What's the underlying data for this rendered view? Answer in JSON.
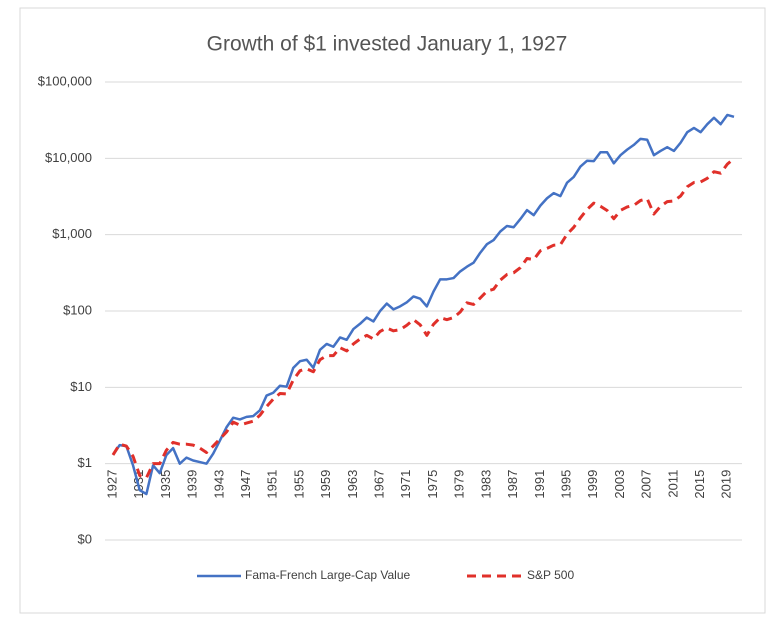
{
  "chart_data": {
    "type": "line",
    "title": "Growth of $1 invested January 1, 1927",
    "x": [
      1927,
      1928,
      1929,
      1930,
      1931,
      1932,
      1933,
      1934,
      1935,
      1936,
      1937,
      1938,
      1939,
      1940,
      1941,
      1942,
      1943,
      1944,
      1945,
      1946,
      1947,
      1948,
      1949,
      1950,
      1951,
      1952,
      1953,
      1954,
      1955,
      1956,
      1957,
      1958,
      1959,
      1960,
      1961,
      1962,
      1963,
      1964,
      1965,
      1966,
      1967,
      1968,
      1969,
      1970,
      1971,
      1972,
      1973,
      1974,
      1975,
      1976,
      1977,
      1978,
      1979,
      1980,
      1981,
      1982,
      1983,
      1984,
      1985,
      1986,
      1987,
      1988,
      1989,
      1990,
      1991,
      1992,
      1993,
      1994,
      1995,
      1996,
      1997,
      1998,
      1999,
      2000,
      2001,
      2002,
      2003,
      2004,
      2005,
      2006,
      2007,
      2008,
      2009,
      2010,
      2011,
      2012,
      2013,
      2014,
      2015,
      2016,
      2017,
      2018,
      2019,
      2020
    ],
    "xlim": [
      1927,
      2020
    ],
    "xticks": [
      1927,
      1931,
      1935,
      1939,
      1943,
      1947,
      1951,
      1955,
      1959,
      1963,
      1967,
      1971,
      1975,
      1979,
      1983,
      1987,
      1991,
      1995,
      1999,
      2003,
      2007,
      2011,
      2015,
      2019
    ],
    "ylim": [
      0.1,
      100000
    ],
    "log_scale": true,
    "grid": true,
    "yticks": [
      {
        "value": 0.1,
        "label": "$0"
      },
      {
        "value": 1,
        "label": "$1"
      },
      {
        "value": 10,
        "label": "$10"
      },
      {
        "value": 100,
        "label": "$100"
      },
      {
        "value": 1000,
        "label": "$1,000"
      },
      {
        "value": 10000,
        "label": "$10,000"
      },
      {
        "value": 100000,
        "label": "$100,000"
      }
    ],
    "series": [
      {
        "name": "Fama-French Large-Cap Value",
        "color": "#4472c4",
        "dash": false,
        "values": [
          1.3,
          1.75,
          1.7,
          0.95,
          0.45,
          0.4,
          0.95,
          0.75,
          1.3,
          1.6,
          1.0,
          1.2,
          1.1,
          1.05,
          1.0,
          1.35,
          2.0,
          3.0,
          4.0,
          3.8,
          4.1,
          4.2,
          5.0,
          7.8,
          8.5,
          10.5,
          10.2,
          18,
          22,
          23,
          18,
          31,
          37,
          34,
          45,
          42,
          58,
          68,
          82,
          73,
          100,
          125,
          105,
          115,
          130,
          155,
          145,
          115,
          180,
          260,
          260,
          270,
          330,
          380,
          430,
          580,
          750,
          850,
          1100,
          1300,
          1250,
          1600,
          2100,
          1800,
          2400,
          3000,
          3500,
          3200,
          4800,
          5700,
          7800,
          9300,
          9200,
          12000,
          12000,
          8600,
          11000,
          13000,
          15000,
          18000,
          17500,
          11000,
          12500,
          14000,
          12500,
          16000,
          22000,
          25000,
          22000,
          28000,
          34000,
          28000,
          37000,
          35000
        ]
      },
      {
        "name": "S&P 500",
        "color": "#e0302a",
        "dash": true,
        "values": [
          1.3,
          1.8,
          1.7,
          1.25,
          0.7,
          0.65,
          1.0,
          1.0,
          1.5,
          1.9,
          1.8,
          1.8,
          1.75,
          1.6,
          1.4,
          1.7,
          2.1,
          2.6,
          3.5,
          3.2,
          3.4,
          3.6,
          4.3,
          5.6,
          7.0,
          8.3,
          8.2,
          12.5,
          16.5,
          17.5,
          16,
          23,
          26,
          26,
          33,
          30,
          37,
          43,
          48,
          43,
          54,
          60,
          55,
          57,
          65,
          77,
          66,
          48,
          67,
          82,
          77,
          82,
          97,
          128,
          122,
          148,
          182,
          193,
          254,
          301,
          317,
          370,
          487,
          471,
          615,
          662,
          728,
          738,
          1015,
          1248,
          1664,
          2140,
          2590,
          2355,
          2075,
          1617,
          2080,
          2307,
          2420,
          2802,
          2955,
          1862,
          2354,
          2709,
          2766,
          3208,
          4247,
          4829,
          4896,
          5481,
          6677,
          6384,
          8394,
          9938
        ]
      }
    ]
  }
}
